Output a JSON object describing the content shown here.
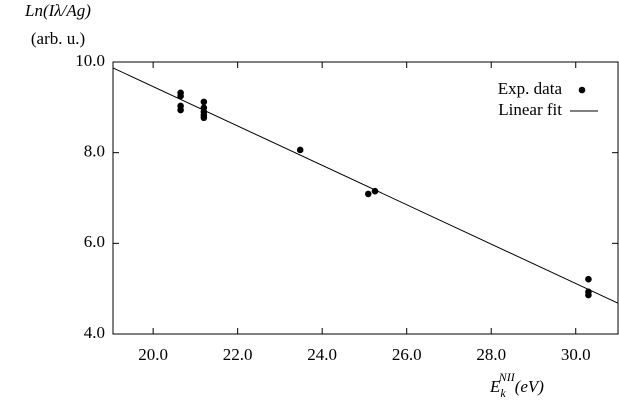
{
  "chart_data": {
    "type": "scatter",
    "ylabel": [
      "Ln(Iλ/Ag)",
      "(arb. u.)"
    ],
    "xlabel": {
      "base": "E",
      "sub": "k",
      "sup": "NII",
      "rest": "(eV)"
    },
    "xlim": [
      19.05,
      31.0
    ],
    "ylim": [
      4.0,
      10.0
    ],
    "xticks": [
      {
        "value": 20,
        "label": "20.0"
      },
      {
        "value": 22,
        "label": "22.0"
      },
      {
        "value": 24,
        "label": "24.0"
      },
      {
        "value": 26,
        "label": "26.0"
      },
      {
        "value": 28,
        "label": "28.0"
      },
      {
        "value": 30,
        "label": "30.0"
      }
    ],
    "yticks": [
      {
        "value": 4,
        "label": "4.0"
      },
      {
        "value": 6,
        "label": "6.0"
      },
      {
        "value": 8,
        "label": "8.0"
      },
      {
        "value": 10,
        "label": "10.0"
      }
    ],
    "legend": "upper right",
    "series": [
      {
        "name": "Exp. data",
        "color": "#000000",
        "x": [
          20.65,
          20.65,
          20.65,
          20.65,
          21.2,
          21.2,
          21.2,
          21.2,
          21.2,
          23.48,
          25.09,
          25.25,
          30.3,
          30.3,
          30.3
        ],
        "values": [
          9.32,
          9.25,
          9.03,
          8.94,
          9.12,
          8.99,
          8.9,
          8.83,
          8.77,
          8.06,
          7.09,
          7.15,
          5.21,
          4.93,
          4.86
        ]
      },
      {
        "name": "Linear fit",
        "color": "#000000",
        "x": [
          19.05,
          31.0
        ],
        "values": [
          9.87,
          4.68
        ]
      }
    ]
  }
}
